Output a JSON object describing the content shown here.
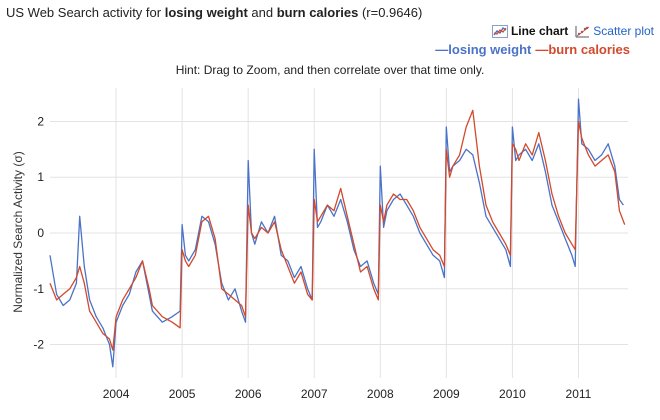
{
  "header": {
    "title_prefix": "US Web Search activity for ",
    "term1": "losing weight",
    "and": " and ",
    "term2": "burn calories",
    "corr": " (r=0.9646)"
  },
  "toggles": {
    "line_label": "Line chart",
    "scatter_label": "Scatter plot"
  },
  "hint": "Hint: Drag to Zoom, and then correlate over that time only.",
  "colors": {
    "losing_weight": "#4a73c8",
    "burn_calories": "#d2492c"
  },
  "chart_data": {
    "type": "line",
    "ylabel": "Normalized Search Activity (σ)",
    "ylim": [
      -2.6,
      2.6
    ],
    "yticks": [
      -2,
      -1,
      0,
      1,
      2
    ],
    "xlim": [
      2003.0,
      2011.75
    ],
    "xticks": [
      2004,
      2005,
      2006,
      2007,
      2008,
      2009,
      2010,
      2011
    ],
    "grid": true,
    "legend_placement": "top-right",
    "series": [
      {
        "name": "losing weight",
        "color": "#4a73c8",
        "points": [
          [
            2003.0,
            -0.4
          ],
          [
            2003.1,
            -1.1
          ],
          [
            2003.2,
            -1.3
          ],
          [
            2003.3,
            -1.2
          ],
          [
            2003.4,
            -0.9
          ],
          [
            2003.45,
            0.3
          ],
          [
            2003.52,
            -0.6
          ],
          [
            2003.6,
            -1.2
          ],
          [
            2003.7,
            -1.5
          ],
          [
            2003.8,
            -1.7
          ],
          [
            2003.9,
            -2.0
          ],
          [
            2003.95,
            -2.4
          ],
          [
            2004.0,
            -1.6
          ],
          [
            2004.1,
            -1.3
          ],
          [
            2004.2,
            -1.1
          ],
          [
            2004.3,
            -0.7
          ],
          [
            2004.4,
            -0.5
          ],
          [
            2004.5,
            -1.1
          ],
          [
            2004.55,
            -1.4
          ],
          [
            2004.7,
            -1.6
          ],
          [
            2004.85,
            -1.5
          ],
          [
            2004.97,
            -1.4
          ],
          [
            2005.0,
            0.15
          ],
          [
            2005.05,
            -0.4
          ],
          [
            2005.1,
            -0.5
          ],
          [
            2005.2,
            -0.3
          ],
          [
            2005.3,
            0.3
          ],
          [
            2005.4,
            0.2
          ],
          [
            2005.5,
            -0.2
          ],
          [
            2005.6,
            -0.9
          ],
          [
            2005.7,
            -1.2
          ],
          [
            2005.8,
            -1.0
          ],
          [
            2005.9,
            -1.4
          ],
          [
            2005.96,
            -1.6
          ],
          [
            2006.0,
            1.3
          ],
          [
            2006.05,
            0.0
          ],
          [
            2006.1,
            -0.2
          ],
          [
            2006.2,
            0.2
          ],
          [
            2006.3,
            0.0
          ],
          [
            2006.4,
            0.3
          ],
          [
            2006.5,
            -0.4
          ],
          [
            2006.6,
            -0.5
          ],
          [
            2006.7,
            -0.8
          ],
          [
            2006.8,
            -0.6
          ],
          [
            2006.9,
            -1.0
          ],
          [
            2006.97,
            -1.2
          ],
          [
            2007.0,
            1.5
          ],
          [
            2007.05,
            0.1
          ],
          [
            2007.1,
            0.2
          ],
          [
            2007.2,
            0.5
          ],
          [
            2007.3,
            0.3
          ],
          [
            2007.4,
            0.6
          ],
          [
            2007.5,
            0.2
          ],
          [
            2007.6,
            -0.3
          ],
          [
            2007.7,
            -0.6
          ],
          [
            2007.8,
            -0.5
          ],
          [
            2007.9,
            -0.9
          ],
          [
            2007.97,
            -1.1
          ],
          [
            2008.0,
            1.2
          ],
          [
            2008.05,
            0.1
          ],
          [
            2008.1,
            0.4
          ],
          [
            2008.2,
            0.6
          ],
          [
            2008.3,
            0.7
          ],
          [
            2008.4,
            0.5
          ],
          [
            2008.5,
            0.3
          ],
          [
            2008.6,
            0.0
          ],
          [
            2008.7,
            -0.2
          ],
          [
            2008.8,
            -0.4
          ],
          [
            2008.9,
            -0.5
          ],
          [
            2008.97,
            -0.8
          ],
          [
            2009.0,
            1.9
          ],
          [
            2009.05,
            1.1
          ],
          [
            2009.1,
            1.2
          ],
          [
            2009.2,
            1.3
          ],
          [
            2009.3,
            1.5
          ],
          [
            2009.4,
            1.4
          ],
          [
            2009.5,
            0.9
          ],
          [
            2009.6,
            0.3
          ],
          [
            2009.7,
            0.1
          ],
          [
            2009.8,
            -0.1
          ],
          [
            2009.9,
            -0.3
          ],
          [
            2009.97,
            -0.6
          ],
          [
            2010.0,
            1.9
          ],
          [
            2010.05,
            1.3
          ],
          [
            2010.1,
            1.4
          ],
          [
            2010.2,
            1.5
          ],
          [
            2010.3,
            1.3
          ],
          [
            2010.4,
            1.6
          ],
          [
            2010.5,
            1.1
          ],
          [
            2010.6,
            0.5
          ],
          [
            2010.7,
            0.2
          ],
          [
            2010.8,
            -0.1
          ],
          [
            2010.9,
            -0.4
          ],
          [
            2010.95,
            -0.6
          ],
          [
            2011.0,
            2.4
          ],
          [
            2011.05,
            1.6
          ],
          [
            2011.15,
            1.5
          ],
          [
            2011.25,
            1.3
          ],
          [
            2011.35,
            1.4
          ],
          [
            2011.45,
            1.6
          ],
          [
            2011.55,
            1.2
          ],
          [
            2011.62,
            0.6
          ],
          [
            2011.68,
            0.5
          ]
        ]
      },
      {
        "name": "burn calories",
        "color": "#d2492c",
        "points": [
          [
            2003.0,
            -0.9
          ],
          [
            2003.1,
            -1.2
          ],
          [
            2003.2,
            -1.1
          ],
          [
            2003.3,
            -1.0
          ],
          [
            2003.4,
            -0.8
          ],
          [
            2003.45,
            -0.6
          ],
          [
            2003.52,
            -0.9
          ],
          [
            2003.6,
            -1.4
          ],
          [
            2003.7,
            -1.6
          ],
          [
            2003.8,
            -1.8
          ],
          [
            2003.9,
            -1.9
          ],
          [
            2003.95,
            -2.1
          ],
          [
            2004.0,
            -1.5
          ],
          [
            2004.1,
            -1.2
          ],
          [
            2004.2,
            -1.0
          ],
          [
            2004.3,
            -0.8
          ],
          [
            2004.4,
            -0.5
          ],
          [
            2004.5,
            -1.0
          ],
          [
            2004.55,
            -1.3
          ],
          [
            2004.7,
            -1.5
          ],
          [
            2004.85,
            -1.6
          ],
          [
            2004.97,
            -1.7
          ],
          [
            2005.0,
            -0.3
          ],
          [
            2005.05,
            -0.5
          ],
          [
            2005.1,
            -0.6
          ],
          [
            2005.2,
            -0.4
          ],
          [
            2005.3,
            0.2
          ],
          [
            2005.4,
            0.3
          ],
          [
            2005.5,
            -0.1
          ],
          [
            2005.6,
            -1.0
          ],
          [
            2005.7,
            -1.1
          ],
          [
            2005.8,
            -1.2
          ],
          [
            2005.9,
            -1.3
          ],
          [
            2005.96,
            -1.5
          ],
          [
            2006.0,
            0.5
          ],
          [
            2006.05,
            0.0
          ],
          [
            2006.1,
            -0.1
          ],
          [
            2006.2,
            0.1
          ],
          [
            2006.3,
            0.0
          ],
          [
            2006.4,
            0.2
          ],
          [
            2006.5,
            -0.3
          ],
          [
            2006.6,
            -0.6
          ],
          [
            2006.7,
            -0.9
          ],
          [
            2006.8,
            -0.7
          ],
          [
            2006.9,
            -1.1
          ],
          [
            2006.97,
            -1.2
          ],
          [
            2007.0,
            0.6
          ],
          [
            2007.05,
            0.2
          ],
          [
            2007.1,
            0.3
          ],
          [
            2007.2,
            0.5
          ],
          [
            2007.3,
            0.4
          ],
          [
            2007.4,
            0.8
          ],
          [
            2007.5,
            0.3
          ],
          [
            2007.6,
            -0.2
          ],
          [
            2007.7,
            -0.7
          ],
          [
            2007.8,
            -0.6
          ],
          [
            2007.9,
            -1.0
          ],
          [
            2007.97,
            -1.2
          ],
          [
            2008.0,
            0.5
          ],
          [
            2008.05,
            0.2
          ],
          [
            2008.1,
            0.5
          ],
          [
            2008.2,
            0.7
          ],
          [
            2008.3,
            0.6
          ],
          [
            2008.4,
            0.6
          ],
          [
            2008.5,
            0.4
          ],
          [
            2008.6,
            0.1
          ],
          [
            2008.7,
            -0.1
          ],
          [
            2008.8,
            -0.3
          ],
          [
            2008.9,
            -0.4
          ],
          [
            2008.97,
            -0.6
          ],
          [
            2009.0,
            1.5
          ],
          [
            2009.05,
            1.0
          ],
          [
            2009.1,
            1.2
          ],
          [
            2009.2,
            1.4
          ],
          [
            2009.3,
            1.9
          ],
          [
            2009.4,
            2.2
          ],
          [
            2009.5,
            1.2
          ],
          [
            2009.6,
            0.5
          ],
          [
            2009.7,
            0.2
          ],
          [
            2009.8,
            0.0
          ],
          [
            2009.9,
            -0.2
          ],
          [
            2009.97,
            -0.4
          ],
          [
            2010.0,
            1.6
          ],
          [
            2010.05,
            1.5
          ],
          [
            2010.1,
            1.3
          ],
          [
            2010.2,
            1.6
          ],
          [
            2010.3,
            1.4
          ],
          [
            2010.4,
            1.8
          ],
          [
            2010.5,
            1.3
          ],
          [
            2010.6,
            0.7
          ],
          [
            2010.7,
            0.3
          ],
          [
            2010.8,
            0.0
          ],
          [
            2010.9,
            -0.2
          ],
          [
            2010.95,
            -0.3
          ],
          [
            2011.0,
            2.0
          ],
          [
            2011.05,
            1.7
          ],
          [
            2011.15,
            1.4
          ],
          [
            2011.25,
            1.2
          ],
          [
            2011.35,
            1.3
          ],
          [
            2011.45,
            1.4
          ],
          [
            2011.55,
            1.1
          ],
          [
            2011.62,
            0.4
          ],
          [
            2011.7,
            0.15
          ]
        ]
      }
    ]
  }
}
